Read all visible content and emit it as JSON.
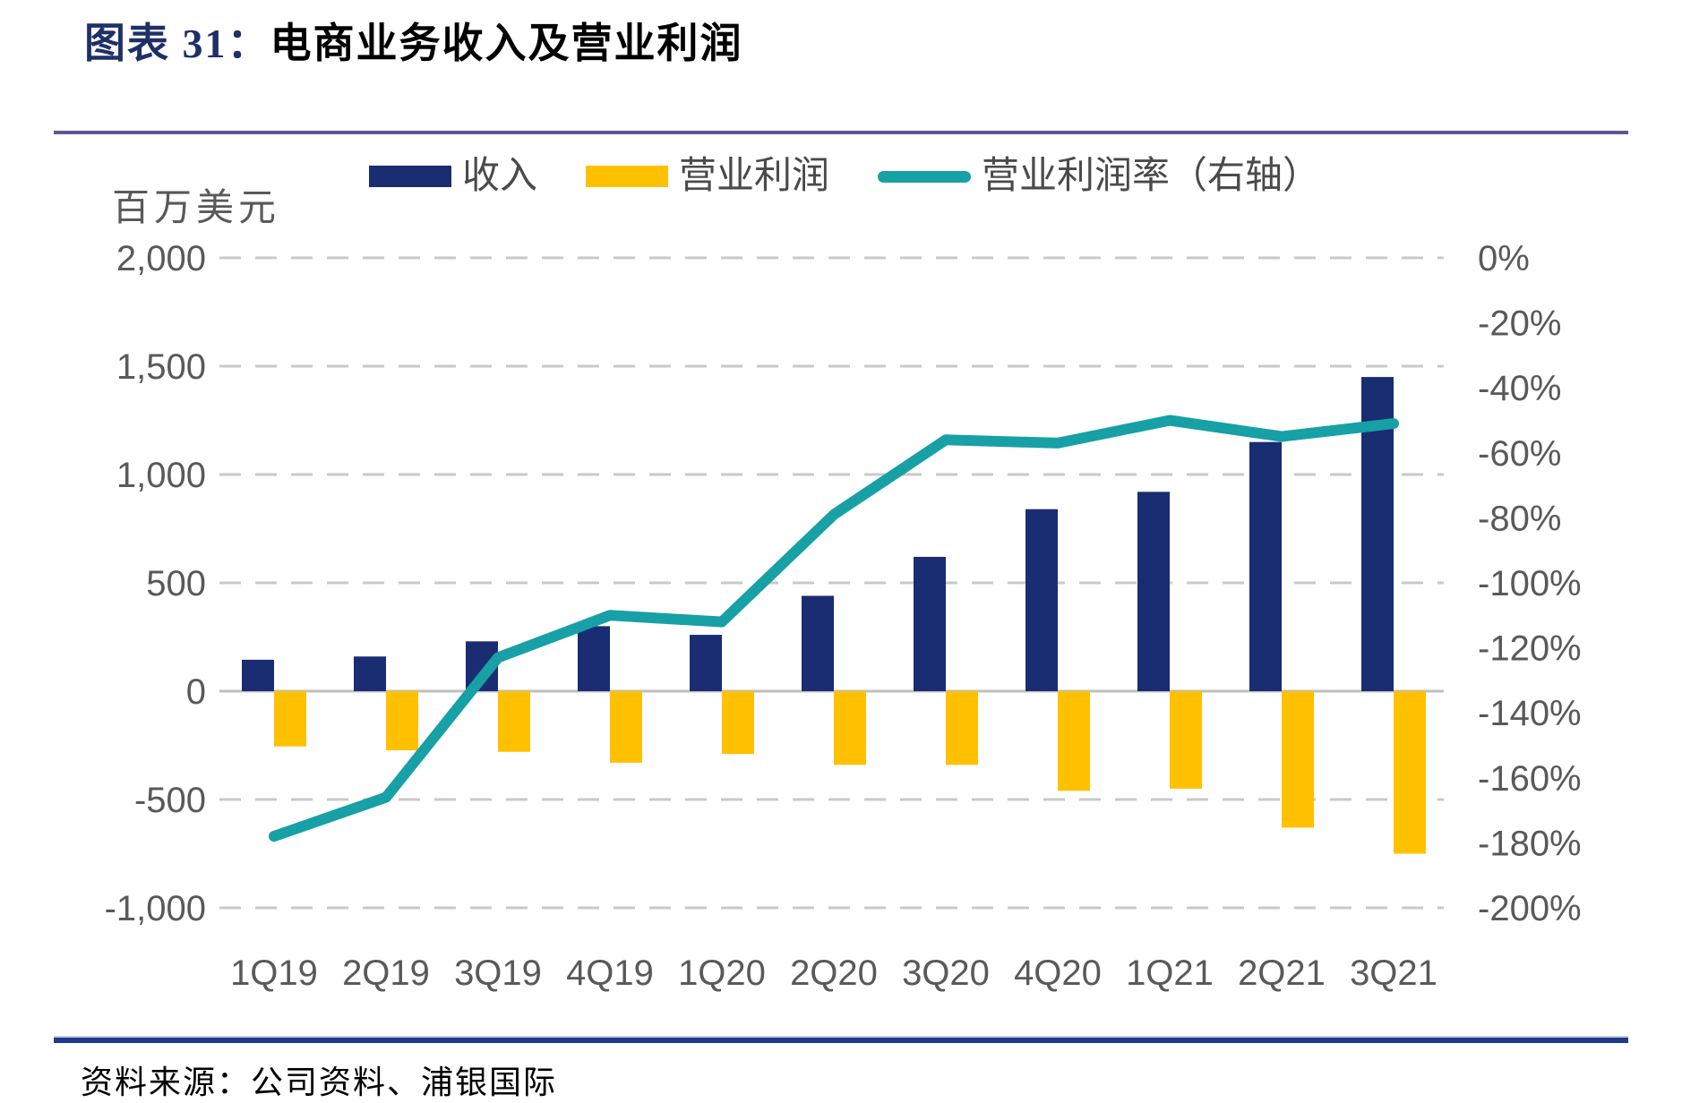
{
  "header": {
    "title_prefix": "图表 31：",
    "title_main": "电商业务收入及营业利润"
  },
  "footer": {
    "source": "资料来源：公司资料、浦银国际"
  },
  "legend": {
    "items": [
      {
        "label": "收入",
        "type": "bar",
        "color": "#1A2C72"
      },
      {
        "label": "营业利润",
        "type": "bar",
        "color": "#FFC000"
      },
      {
        "label": "营业利润率（右轴）",
        "type": "line",
        "color": "#17A0A5"
      }
    ]
  },
  "colors": {
    "revenue_bar": "#1A2C72",
    "profit_bar": "#FFC000",
    "margin_line": "#17A0A5",
    "grid": "#C9C9C9",
    "zero_line": "#BFBFBF",
    "axis_text": "#595959",
    "title_accent": "#1F3068",
    "top_rule": "#5B5694",
    "bottom_rule": "#1E3A8F"
  },
  "chart_data": {
    "type": "bar+line combo",
    "categories": [
      "1Q19",
      "2Q19",
      "3Q19",
      "4Q19",
      "1Q20",
      "2Q20",
      "3Q20",
      "4Q20",
      "1Q21",
      "2Q21",
      "3Q21"
    ],
    "series": [
      {
        "name": "收入",
        "type": "bar",
        "axis": "left",
        "color": "#1A2C72",
        "values": [
          145,
          160,
          230,
          300,
          260,
          440,
          620,
          840,
          920,
          1150,
          1450
        ]
      },
      {
        "name": "营业利润",
        "type": "bar",
        "axis": "left",
        "color": "#FFC000",
        "values": [
          -255,
          -273,
          -280,
          -330,
          -290,
          -340,
          -340,
          -460,
          -450,
          -630,
          -750
        ]
      },
      {
        "name": "营业利润率（右轴）",
        "type": "line",
        "axis": "right",
        "color": "#17A0A5",
        "values": [
          -178,
          -166,
          -123,
          -110,
          -112,
          -79,
          -56,
          -57,
          -50,
          -55,
          -51
        ]
      }
    ],
    "left_axis": {
      "title": "百万美元",
      "min": -1000,
      "max": 2000,
      "tick_values": [
        2000,
        1500,
        1000,
        500,
        0,
        -500,
        -1000
      ],
      "tick_labels": [
        "2,000",
        "1,500",
        "1,000",
        "500",
        "0",
        "-500",
        "-1,000"
      ]
    },
    "right_axis": {
      "min": -200,
      "max": 0,
      "tick_values": [
        0,
        -20,
        -40,
        -60,
        -80,
        -100,
        -120,
        -140,
        -160,
        -180,
        -200
      ],
      "tick_labels": [
        "0%",
        "-20%",
        "-40%",
        "-60%",
        "-80%",
        "-100%",
        "-120%",
        "-140%",
        "-160%",
        "-180%",
        "-200%"
      ]
    },
    "grid": "horizontal dashed, solid zero line",
    "legend_position": "top"
  }
}
